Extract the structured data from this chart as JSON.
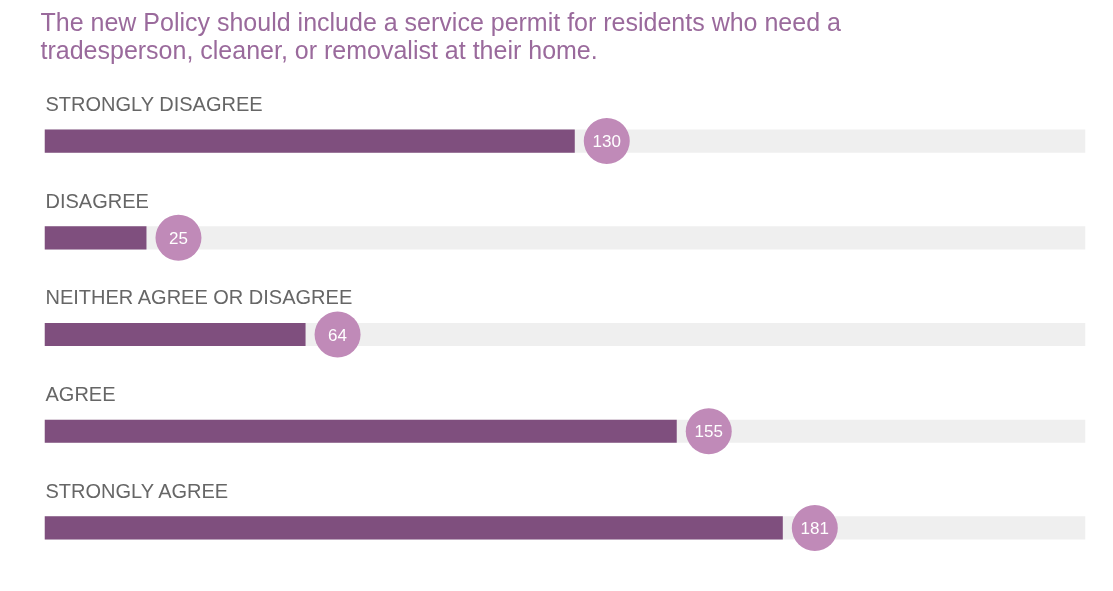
{
  "chart_data": {
    "type": "bar",
    "orientation": "horizontal",
    "relative": false,
    "title": "The new Policy should include a service permit for residents who need a\ntradesperson, cleaner, or removalist at their home.",
    "categories": [
      "STRONGLY DISAGREE",
      "DISAGREE",
      "NEITHER AGREE OR DISAGREE",
      "AGREE",
      "STRONGLY AGREE"
    ],
    "values": [
      130,
      25,
      64,
      155,
      181
    ],
    "color": "#7f4f7e",
    "data_labels": true
  }
}
